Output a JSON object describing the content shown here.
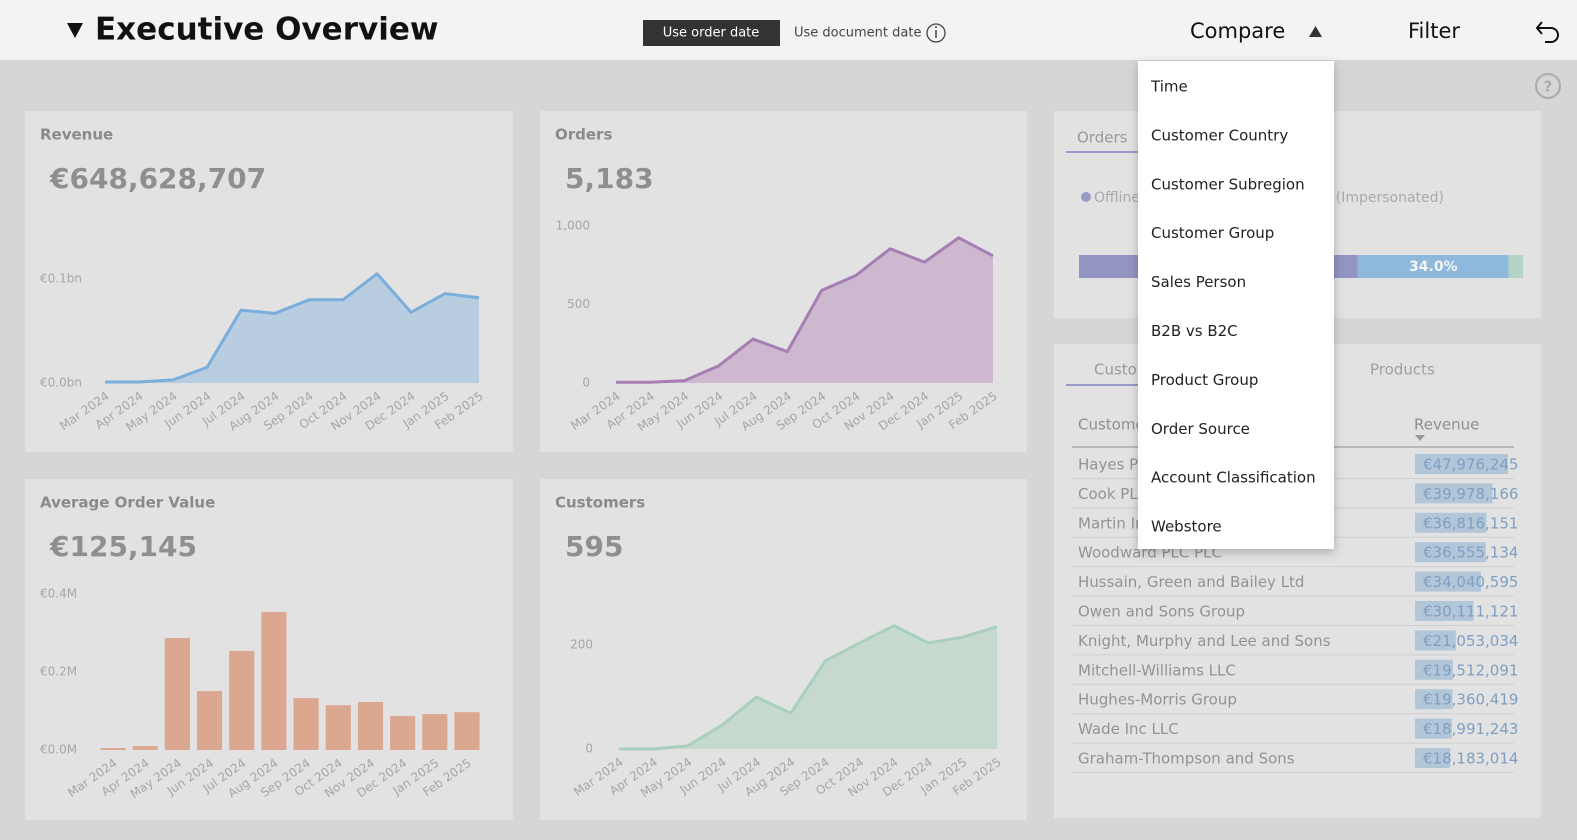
{
  "header": {
    "title": "Executive Overview",
    "toggle_on": "Use order date",
    "toggle_off": "Use document date",
    "compare": "Compare",
    "filter": "Filter"
  },
  "cards": [
    {
      "title": "Revenue",
      "value": "€648,628,707",
      "chart": {
        "type": "area",
        "color": "#7aaedb",
        "fill": "#b9cde0",
        "categories": [
          "Mar 2024",
          "Apr 2024",
          "May 2024",
          "Jun 2024",
          "Jul 2024",
          "Aug 2024",
          "Sep 2024",
          "Oct 2024",
          "Nov 2024",
          "Dec 2024",
          "Jan 2025",
          "Feb 2025"
        ],
        "values": [
          0.001,
          0.001,
          0.003,
          0.015,
          0.07,
          0.067,
          0.08,
          0.08,
          0.105,
          0.068,
          0.086,
          0.082
        ],
        "ylim": [
          0,
          0.15
        ],
        "yticks": [
          {
            "value": 0,
            "label": "€0.0bn"
          },
          {
            "value": 0.1,
            "label": "€0.1bn"
          }
        ]
      }
    },
    {
      "title": "Orders",
      "value": "5,183",
      "chart": {
        "type": "area",
        "color": "#a77eb4",
        "fill": "#cdb8d0",
        "categories": [
          "Mar 2024",
          "Apr 2024",
          "May 2024",
          "Jun 2024",
          "Jul 2024",
          "Aug 2024",
          "Sep 2024",
          "Oct 2024",
          "Nov 2024",
          "Dec 2024",
          "Jan 2025",
          "Feb 2025"
        ],
        "values": [
          5,
          5,
          15,
          110,
          280,
          200,
          590,
          685,
          855,
          770,
          925,
          810
        ],
        "ylim": [
          0,
          1000
        ],
        "yticks": [
          0,
          500,
          {
            "value": 1000,
            "label": "1,000"
          }
        ]
      }
    },
    {
      "title": "Average Order Value",
      "value": "€125,145",
      "chart": {
        "type": "bar",
        "color": "#dba791",
        "categories": [
          "Mar 2024",
          "Apr 2024",
          "May 2024",
          "Jun 2024",
          "Jul 2024",
          "Aug 2024",
          "Sep 2024",
          "Oct 2024",
          "Nov 2024",
          "Dec 2024",
          "Jan 2025",
          "Feb 2025"
        ],
        "values": [
          0.005,
          0.01,
          0.287,
          0.151,
          0.254,
          0.354,
          0.133,
          0.115,
          0.123,
          0.087,
          0.092,
          0.097
        ],
        "ylim": [
          0,
          0.4
        ],
        "yticks": [
          {
            "value": 0,
            "label": "€0.0M"
          },
          {
            "value": 0.2,
            "label": "€0.2M"
          },
          {
            "value": 0.4,
            "label": "€0.4M"
          }
        ]
      }
    },
    {
      "title": "Customers",
      "value": "595",
      "chart": {
        "type": "area",
        "color": "#a9cfbd",
        "fill": "#c6d9cf",
        "categories": [
          "Mar 2024",
          "Apr 2024",
          "May 2024",
          "Jun 2024",
          "Jul 2024",
          "Aug 2024",
          "Sep 2024",
          "Oct 2024",
          "Nov 2024",
          "Dec 2024",
          "Jan 2025",
          "Feb 2025"
        ],
        "values": [
          0,
          0,
          6,
          46,
          100,
          69,
          169,
          204,
          237,
          204,
          215,
          235
        ],
        "ylim": [
          0,
          280
        ],
        "yticks": [
          0,
          200
        ]
      }
    }
  ],
  "split": {
    "tab": "Orders",
    "legend": [
      {
        "name": "Offline",
        "color": "#9a9ac8"
      },
      {
        "name": "Online (Impersonated)",
        "color": "#9cc0dc"
      }
    ],
    "segments": [
      {
        "value": 62.8,
        "color": "#9494c2"
      },
      {
        "value": 34.0,
        "label": "34.0%",
        "color": "#8fb9dc"
      },
      {
        "value": 3.2,
        "color": "#b5d3c4"
      }
    ]
  },
  "table": {
    "tabs": [
      "Customers",
      "Products"
    ],
    "columns": [
      "Customer",
      "Revenue"
    ],
    "rows": [
      {
        "customer": "Hayes PLC",
        "revenue": {
          "value": 47976245,
          "label": "€47,976,245"
        }
      },
      {
        "customer": "Cook PLC",
        "revenue": {
          "value": 39978166,
          "label": "€39,978,166"
        }
      },
      {
        "customer": "Martin Inc",
        "revenue": {
          "value": 36816151,
          "label": "€36,816,151"
        }
      },
      {
        "customer": "Woodward PLC PLC",
        "revenue": {
          "value": 36555134,
          "label": "€36,555,134"
        }
      },
      {
        "customer": "Hussain, Green and Bailey Ltd",
        "revenue": {
          "value": 34040595,
          "label": "€34,040,595"
        }
      },
      {
        "customer": "Owen and Sons Group",
        "revenue": {
          "value": 30111121,
          "label": "€30,111,121"
        }
      },
      {
        "customer": "Knight, Murphy and Lee and Sons",
        "revenue": {
          "value": 21053034,
          "label": "€21,053,034"
        }
      },
      {
        "customer": "Mitchell-Williams LLC",
        "revenue": {
          "value": 19512091,
          "label": "€19,512,091"
        }
      },
      {
        "customer": "Hughes-Morris Group",
        "revenue": {
          "value": 19360419,
          "label": "€19,360,419"
        }
      },
      {
        "customer": "Wade Inc LLC",
        "revenue": {
          "value": 18991243,
          "label": "€18,991,243"
        }
      },
      {
        "customer": "Graham-Thompson and Sons",
        "revenue": {
          "value": 18183014,
          "label": "€18,183,014"
        }
      }
    ]
  },
  "compare_menu": [
    "Time",
    "Customer Country",
    "Customer Subregion",
    "Customer Group",
    "Sales Person",
    "B2B vs B2C",
    "Product Group",
    "Order Source",
    "Account Classification",
    "Webstore"
  ]
}
